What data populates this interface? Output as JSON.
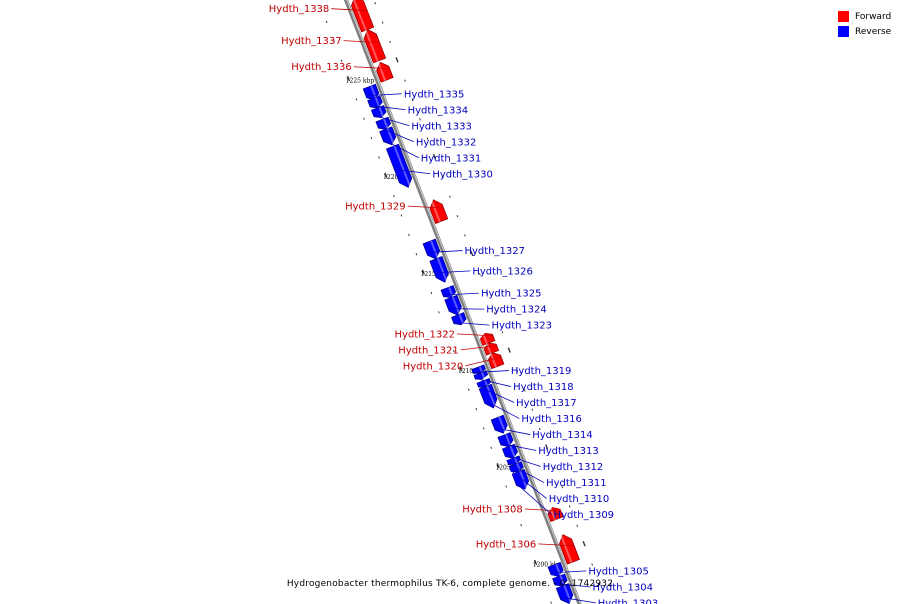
{
  "caption": "Hydrogenobacter thermophilus TK-6, complete genome. - 0..1742932",
  "legend": [
    {
      "label": "Forward",
      "color": "#ff0000"
    },
    {
      "label": "Reverse",
      "color": "#0000ff"
    }
  ],
  "colors": {
    "forward": "#ff0000",
    "reverse": "#0000ff",
    "forward_label": "#c00000",
    "reverse_label": "#0000c0",
    "backbone": "#7f7f7f"
  },
  "genes": [
    {
      "name": "Hydth_1338",
      "strand": "forward",
      "start": 1227.0,
      "end": 1228.7
    },
    {
      "name": "Hydth_1337",
      "strand": "forward",
      "start": 1225.4,
      "end": 1227.0
    },
    {
      "name": "Hydth_1336",
      "strand": "forward",
      "start": 1224.4,
      "end": 1225.3
    },
    {
      "name": "Hydth_1335",
      "strand": "reverse",
      "start": 1223.7,
      "end": 1224.4
    },
    {
      "name": "Hydth_1334",
      "strand": "reverse",
      "start": 1223.3,
      "end": 1223.8
    },
    {
      "name": "Hydth_1333",
      "strand": "reverse",
      "start": 1222.8,
      "end": 1223.3
    },
    {
      "name": "Hydth_1332",
      "strand": "reverse",
      "start": 1222.2,
      "end": 1222.7
    },
    {
      "name": "Hydth_1331",
      "strand": "reverse",
      "start": 1221.4,
      "end": 1222.2
    },
    {
      "name": "Hydth_1330",
      "strand": "reverse",
      "start": 1219.2,
      "end": 1221.3
    },
    {
      "name": "Hydth_1329",
      "strand": "forward",
      "start": 1217.1,
      "end": 1218.2
    },
    {
      "name": "Hydth_1327",
      "strand": "reverse",
      "start": 1215.5,
      "end": 1216.4
    },
    {
      "name": "Hydth_1326",
      "strand": "reverse",
      "start": 1214.3,
      "end": 1215.5
    },
    {
      "name": "Hydth_1325",
      "strand": "reverse",
      "start": 1213.5,
      "end": 1214.0
    },
    {
      "name": "Hydth_1324",
      "strand": "reverse",
      "start": 1212.6,
      "end": 1213.5
    },
    {
      "name": "Hydth_1323",
      "strand": "reverse",
      "start": 1212.1,
      "end": 1212.6
    },
    {
      "name": "Hydth_1322",
      "strand": "forward",
      "start": 1210.8,
      "end": 1211.3
    },
    {
      "name": "Hydth_1321",
      "strand": "forward",
      "start": 1210.3,
      "end": 1210.8
    },
    {
      "name": "Hydth_1320",
      "strand": "forward",
      "start": 1209.6,
      "end": 1210.3
    },
    {
      "name": "Hydth_1319",
      "strand": "reverse",
      "start": 1209.6,
      "end": 1209.9
    },
    {
      "name": "Hydth_1318",
      "strand": "reverse",
      "start": 1209.3,
      "end": 1209.6
    },
    {
      "name": "Hydth_1317",
      "strand": "reverse",
      "start": 1208.9,
      "end": 1209.2
    },
    {
      "name": "Hydth_1316",
      "strand": "reverse",
      "start": 1207.8,
      "end": 1208.9
    },
    {
      "name": "Hydth_1314",
      "strand": "reverse",
      "start": 1206.5,
      "end": 1207.3
    },
    {
      "name": "Hydth_1313",
      "strand": "reverse",
      "start": 1205.8,
      "end": 1206.4
    },
    {
      "name": "Hydth_1312",
      "strand": "reverse",
      "start": 1205.2,
      "end": 1205.8
    },
    {
      "name": "Hydth_1311",
      "strand": "reverse",
      "start": 1204.9,
      "end": 1205.2
    },
    {
      "name": "Hydth_1310",
      "strand": "reverse",
      "start": 1204.5,
      "end": 1204.9
    },
    {
      "name": "Hydth_1309",
      "strand": "reverse",
      "start": 1203.6,
      "end": 1204.5
    },
    {
      "name": "Hydth_1308",
      "strand": "forward",
      "start": 1201.7,
      "end": 1202.3
    },
    {
      "name": "Hydth_1306",
      "strand": "forward",
      "start": 1199.5,
      "end": 1200.9
    },
    {
      "name": "Hydth_1305",
      "strand": "reverse",
      "start": 1199.1,
      "end": 1199.7
    },
    {
      "name": "Hydth_1304",
      "strand": "reverse",
      "start": 1198.6,
      "end": 1199.1
    },
    {
      "name": "Hydth_1303",
      "strand": "reverse",
      "start": 1197.7,
      "end": 1198.6
    }
  ],
  "scale": [
    {
      "pos": 1225,
      "label": "1225 kbp"
    },
    {
      "pos": 1220,
      "label": "1220 kbp"
    },
    {
      "pos": 1215,
      "label": "1215 kbp"
    },
    {
      "pos": 1210,
      "label": "1210 kbp"
    },
    {
      "pos": 1205,
      "label": "1205 kbp"
    },
    {
      "pos": 1200,
      "label": "1200 kbp"
    }
  ]
}
